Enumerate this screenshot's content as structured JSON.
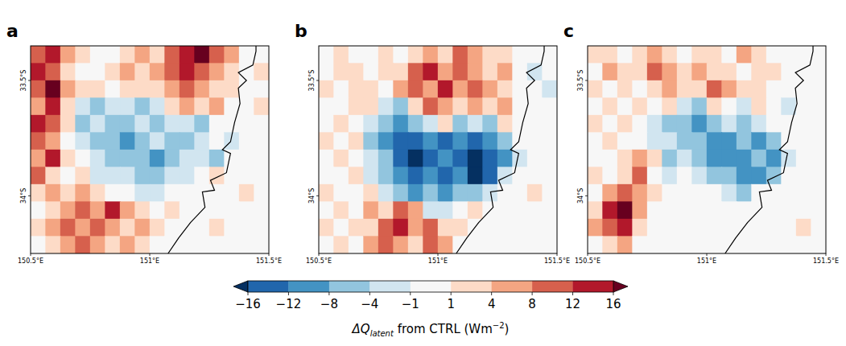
{
  "chart_data": [
    {
      "type": "heatmap",
      "title": "a",
      "xlim": [
        150.5,
        151.5
      ],
      "ylim": [
        -34.25,
        -33.35
      ],
      "xticks": [
        {
          "value": 150.5,
          "label": "150.5°E"
        },
        {
          "value": 151,
          "label": "151°E"
        },
        {
          "value": 151.5,
          "label": "151.5°E"
        }
      ],
      "yticks": [
        {
          "value": -33.5,
          "label": "33.5°S"
        },
        {
          "value": -34,
          "label": "34°S"
        }
      ],
      "x": [
        150.53125,
        150.59375,
        150.65625,
        150.71875,
        150.78125,
        150.84375,
        150.90625,
        150.96875,
        151.03125,
        151.09375,
        151.15625,
        151.21875,
        151.28125,
        151.34375,
        151.40625,
        151.46875
      ],
      "y": [
        -33.3875,
        -33.4625,
        -33.5375,
        -33.6125,
        -33.6875,
        -33.7625,
        -33.8375,
        -33.9125,
        -33.9875,
        -34.0625,
        -34.1375,
        -34.2125
      ],
      "cells": [
        [
          10,
          14,
          6,
          2,
          0,
          0,
          2,
          6,
          2,
          10,
          14,
          18,
          10,
          6,
          0,
          0
        ],
        [
          14,
          10,
          2,
          0,
          0,
          2,
          6,
          2,
          6,
          10,
          14,
          10,
          6,
          2,
          0,
          2
        ],
        [
          10,
          18,
          6,
          2,
          2,
          0,
          2,
          2,
          2,
          6,
          10,
          6,
          2,
          2,
          0,
          0
        ],
        [
          6,
          14,
          2,
          -2,
          -6,
          -2,
          -2,
          -6,
          -2,
          2,
          6,
          2,
          6,
          0,
          0,
          2
        ],
        [
          14,
          10,
          2,
          -6,
          -2,
          -6,
          -6,
          -2,
          -6,
          -2,
          -2,
          -6,
          0,
          0,
          0,
          0
        ],
        [
          10,
          6,
          0,
          -2,
          -6,
          -6,
          -10,
          -6,
          -2,
          -6,
          -6,
          -2,
          0,
          -2,
          0,
          0
        ],
        [
          6,
          14,
          2,
          0,
          -2,
          -6,
          -6,
          -6,
          -10,
          -6,
          -2,
          -2,
          -6,
          0,
          0,
          0
        ],
        [
          10,
          2,
          0,
          2,
          -2,
          -2,
          -2,
          -6,
          -6,
          -2,
          -2,
          0,
          2,
          0,
          0,
          0
        ],
        [
          2,
          6,
          2,
          6,
          2,
          0,
          0,
          -2,
          -2,
          0,
          0,
          0,
          0,
          0,
          2,
          0
        ],
        [
          0,
          2,
          6,
          10,
          6,
          14,
          6,
          2,
          0,
          2,
          0,
          0,
          0,
          0,
          0,
          0
        ],
        [
          2,
          6,
          10,
          6,
          10,
          6,
          2,
          6,
          2,
          0,
          0,
          0,
          2,
          0,
          0,
          0
        ],
        [
          0,
          2,
          6,
          10,
          6,
          2,
          6,
          2,
          0,
          0,
          0,
          0,
          0,
          0,
          0,
          0
        ]
      ]
    },
    {
      "type": "heatmap",
      "title": "b",
      "xlim": [
        150.5,
        151.5
      ],
      "ylim": [
        -34.25,
        -33.35
      ],
      "xticks": [
        {
          "value": 150.5,
          "label": "150.5°E"
        },
        {
          "value": 151,
          "label": "151°E"
        },
        {
          "value": 151.5,
          "label": "151.5°E"
        }
      ],
      "yticks": [
        {
          "value": -33.5,
          "label": "33.5°S"
        },
        {
          "value": -34,
          "label": "34°S"
        }
      ],
      "x": [
        150.53125,
        150.59375,
        150.65625,
        150.71875,
        150.78125,
        150.84375,
        150.90625,
        150.96875,
        151.03125,
        151.09375,
        151.15625,
        151.21875,
        151.28125,
        151.34375,
        151.40625,
        151.46875
      ],
      "y": [
        -33.3875,
        -33.4625,
        -33.5375,
        -33.6125,
        -33.6875,
        -33.7625,
        -33.8375,
        -33.9125,
        -33.9875,
        -34.0625,
        -34.1375,
        -34.2125
      ],
      "cells": [
        [
          0,
          2,
          0,
          0,
          2,
          0,
          2,
          6,
          2,
          10,
          6,
          2,
          2,
          0,
          0,
          0
        ],
        [
          0,
          2,
          2,
          0,
          2,
          2,
          10,
          14,
          6,
          10,
          6,
          2,
          6,
          0,
          -2,
          0
        ],
        [
          2,
          0,
          2,
          2,
          0,
          6,
          10,
          6,
          14,
          6,
          10,
          6,
          2,
          0,
          0,
          -2
        ],
        [
          0,
          0,
          2,
          2,
          -2,
          -6,
          2,
          10,
          6,
          2,
          6,
          2,
          6,
          0,
          0,
          0
        ],
        [
          0,
          2,
          0,
          -2,
          -6,
          -10,
          -6,
          -2,
          2,
          -6,
          -2,
          -6,
          2,
          0,
          0,
          0
        ],
        [
          2,
          0,
          2,
          -6,
          -10,
          -14,
          -14,
          -10,
          -14,
          -10,
          -14,
          -10,
          -6,
          0,
          0,
          0
        ],
        [
          0,
          2,
          0,
          -2,
          -6,
          -14,
          -18,
          -14,
          -10,
          -14,
          -18,
          -14,
          -10,
          -2,
          0,
          0
        ],
        [
          0,
          0,
          2,
          -2,
          -6,
          -10,
          -14,
          -10,
          -14,
          -10,
          -18,
          -14,
          -2,
          0,
          0,
          0
        ],
        [
          2,
          0,
          0,
          2,
          -2,
          -6,
          -10,
          -6,
          -10,
          -6,
          -6,
          -2,
          0,
          0,
          2,
          0
        ],
        [
          0,
          2,
          0,
          6,
          2,
          10,
          6,
          -2,
          -2,
          0,
          2,
          0,
          0,
          0,
          0,
          0
        ],
        [
          2,
          0,
          2,
          2,
          10,
          14,
          6,
          10,
          2,
          2,
          0,
          0,
          0,
          0,
          0,
          0
        ],
        [
          0,
          2,
          0,
          6,
          10,
          6,
          2,
          10,
          6,
          0,
          0,
          0,
          0,
          0,
          0,
          0
        ]
      ]
    },
    {
      "type": "heatmap",
      "title": "c",
      "xlim": [
        150.5,
        151.5
      ],
      "ylim": [
        -34.25,
        -33.35
      ],
      "xticks": [
        {
          "value": 150.5,
          "label": "150.5°E"
        },
        {
          "value": 151,
          "label": "151°E"
        },
        {
          "value": 151.5,
          "label": "151.5°E"
        }
      ],
      "yticks": [
        {
          "value": -33.5,
          "label": "33.5°S"
        },
        {
          "value": -34,
          "label": "34°S"
        }
      ],
      "x": [
        150.53125,
        150.59375,
        150.65625,
        150.71875,
        150.78125,
        150.84375,
        150.90625,
        150.96875,
        151.03125,
        151.09375,
        151.15625,
        151.21875,
        151.28125,
        151.34375,
        151.40625,
        151.46875
      ],
      "y": [
        -33.3875,
        -33.4625,
        -33.5375,
        -33.6125,
        -33.6875,
        -33.7625,
        -33.8375,
        -33.9125,
        -33.9875,
        -34.0625,
        -34.1375,
        -34.2125
      ],
      "cells": [
        [
          2,
          2,
          0,
          2,
          6,
          2,
          0,
          2,
          2,
          0,
          6,
          2,
          0,
          0,
          0,
          0
        ],
        [
          0,
          6,
          2,
          2,
          10,
          6,
          2,
          6,
          2,
          2,
          0,
          2,
          2,
          0,
          0,
          0
        ],
        [
          2,
          0,
          2,
          0,
          2,
          6,
          2,
          2,
          10,
          6,
          2,
          2,
          0,
          0,
          0,
          0
        ],
        [
          0,
          2,
          0,
          2,
          0,
          2,
          -2,
          -6,
          2,
          0,
          -2,
          2,
          0,
          -2,
          0,
          0
        ],
        [
          2,
          0,
          2,
          0,
          -2,
          -6,
          -6,
          -10,
          -6,
          -2,
          -6,
          -2,
          0,
          0,
          0,
          0
        ],
        [
          0,
          2,
          0,
          0,
          -2,
          -2,
          -6,
          -6,
          -10,
          -10,
          -6,
          -10,
          -6,
          0,
          0,
          0
        ],
        [
          0,
          0,
          2,
          6,
          2,
          -6,
          -2,
          -6,
          -10,
          -10,
          -10,
          -6,
          -10,
          -2,
          0,
          0
        ],
        [
          2,
          0,
          2,
          10,
          0,
          -2,
          0,
          -2,
          -6,
          -6,
          -10,
          -10,
          -6,
          0,
          0,
          0
        ],
        [
          0,
          6,
          10,
          6,
          2,
          0,
          0,
          0,
          0,
          -2,
          -6,
          0,
          0,
          0,
          0,
          0
        ],
        [
          2,
          14,
          18,
          6,
          0,
          0,
          0,
          0,
          0,
          0,
          0,
          0,
          0,
          0,
          0,
          0
        ],
        [
          6,
          10,
          14,
          2,
          0,
          0,
          0,
          0,
          0,
          0,
          0,
          0,
          0,
          0,
          2,
          0
        ],
        [
          0,
          2,
          6,
          0,
          0,
          0,
          0,
          0,
          0,
          0,
          0,
          0,
          0,
          0,
          0,
          0
        ]
      ]
    }
  ],
  "coastline": [
    [
      151.446,
      -33.35
    ],
    [
      151.446,
      -33.373
    ],
    [
      151.433,
      -33.433
    ],
    [
      151.372,
      -33.466
    ],
    [
      151.406,
      -33.5
    ],
    [
      151.372,
      -33.533
    ],
    [
      151.379,
      -33.6
    ],
    [
      151.356,
      -33.683
    ],
    [
      151.339,
      -33.766
    ],
    [
      151.305,
      -33.8
    ],
    [
      151.339,
      -33.816
    ],
    [
      151.322,
      -33.9
    ],
    [
      151.255,
      -33.933
    ],
    [
      151.272,
      -33.976
    ],
    [
      151.221,
      -33.983
    ],
    [
      151.232,
      -34.05
    ],
    [
      151.171,
      -34.116
    ],
    [
      151.121,
      -34.183
    ],
    [
      151.077,
      -34.25
    ]
  ],
  "colorbar": {
    "ticks": [
      {
        "value": -16,
        "label": "−16"
      },
      {
        "value": -12,
        "label": "−12"
      },
      {
        "value": -8,
        "label": "−8"
      },
      {
        "value": -4,
        "label": "−4"
      },
      {
        "value": -1,
        "label": "−1"
      },
      1,
      4,
      8,
      12,
      16
    ],
    "colors": [
      "#053061",
      "#2166ac",
      "#4393c3",
      "#92c5de",
      "#d1e5f0",
      "#f7f7f7",
      "#fddbc7",
      "#f4a582",
      "#d6604d",
      "#b2182b",
      "#67001f"
    ],
    "label": [
      "ΔQ",
      "latent",
      " from CTRL (Wm",
      "−2",
      ")"
    ]
  }
}
